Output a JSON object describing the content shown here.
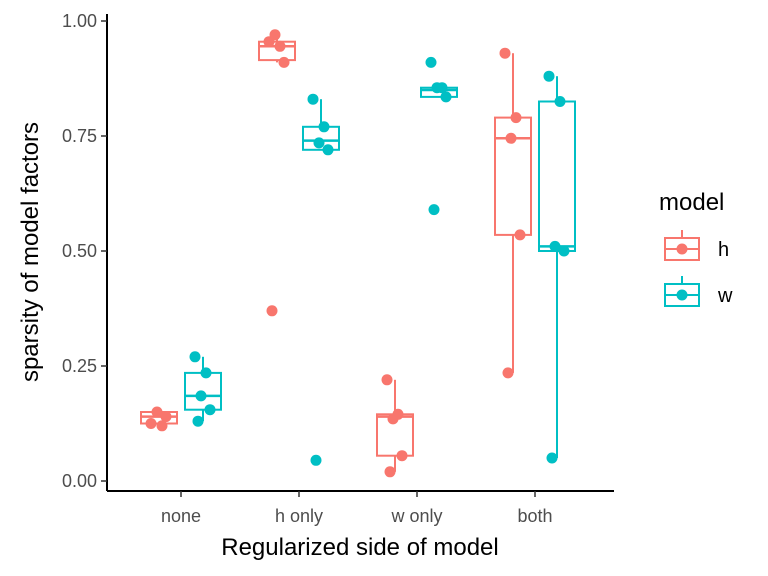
{
  "chart_data": {
    "type": "boxplot",
    "title": "",
    "xlabel": "Regularized side of model",
    "ylabel": "sparsity of model factors",
    "categories": [
      "none",
      "h only",
      "w only",
      "both"
    ],
    "ylim": [
      0,
      1
    ],
    "yticks": [
      "0.00",
      "0.25",
      "0.50",
      "0.75",
      "1.00"
    ],
    "legend": {
      "title": "model",
      "placement": "right"
    },
    "grid": false,
    "series": [
      {
        "name": "h",
        "color": "#F8766D",
        "boxes": [
          {
            "category": "none",
            "min": 0.12,
            "q1": 0.125,
            "median": 0.14,
            "q3": 0.15,
            "max": 0.15
          },
          {
            "category": "h only",
            "min": 0.91,
            "q1": 0.915,
            "median": 0.945,
            "q3": 0.955,
            "max": 0.97
          },
          {
            "category": "w only",
            "min": 0.02,
            "q1": 0.055,
            "median": 0.14,
            "q3": 0.145,
            "max": 0.22
          },
          {
            "category": "both",
            "min": 0.235,
            "q1": 0.535,
            "median": 0.745,
            "q3": 0.79,
            "max": 0.93
          }
        ],
        "points": [
          {
            "category": "none",
            "values": [
              0.125,
              0.12,
              0.15,
              0.14
            ]
          },
          {
            "category": "h only",
            "values": [
              0.955,
              0.945,
              0.97,
              0.91,
              0.37
            ]
          },
          {
            "category": "w only",
            "values": [
              0.22,
              0.145,
              0.135,
              0.055,
              0.02
            ]
          },
          {
            "category": "both",
            "values": [
              0.93,
              0.79,
              0.745,
              0.535,
              0.235
            ]
          }
        ]
      },
      {
        "name": "w",
        "color": "#00BFC4",
        "boxes": [
          {
            "category": "none",
            "min": 0.13,
            "q1": 0.155,
            "median": 0.185,
            "q3": 0.235,
            "max": 0.27
          },
          {
            "category": "h only",
            "min": 0.72,
            "q1": 0.72,
            "median": 0.74,
            "q3": 0.77,
            "max": 0.83
          },
          {
            "category": "w only",
            "min": 0.835,
            "q1": 0.835,
            "median": 0.85,
            "q3": 0.855,
            "max": 0.855
          },
          {
            "category": "both",
            "min": 0.05,
            "q1": 0.5,
            "median": 0.51,
            "q3": 0.825,
            "max": 0.88
          }
        ],
        "points": [
          {
            "category": "none",
            "values": [
              0.27,
              0.235,
              0.185,
              0.155,
              0.13
            ]
          },
          {
            "category": "h only",
            "values": [
              0.83,
              0.77,
              0.735,
              0.72,
              0.045
            ]
          },
          {
            "category": "w only",
            "values": [
              0.91,
              0.855,
              0.855,
              0.835,
              0.59
            ]
          },
          {
            "category": "both",
            "values": [
              0.88,
              0.825,
              0.51,
              0.5,
              0.05
            ]
          }
        ]
      }
    ]
  }
}
